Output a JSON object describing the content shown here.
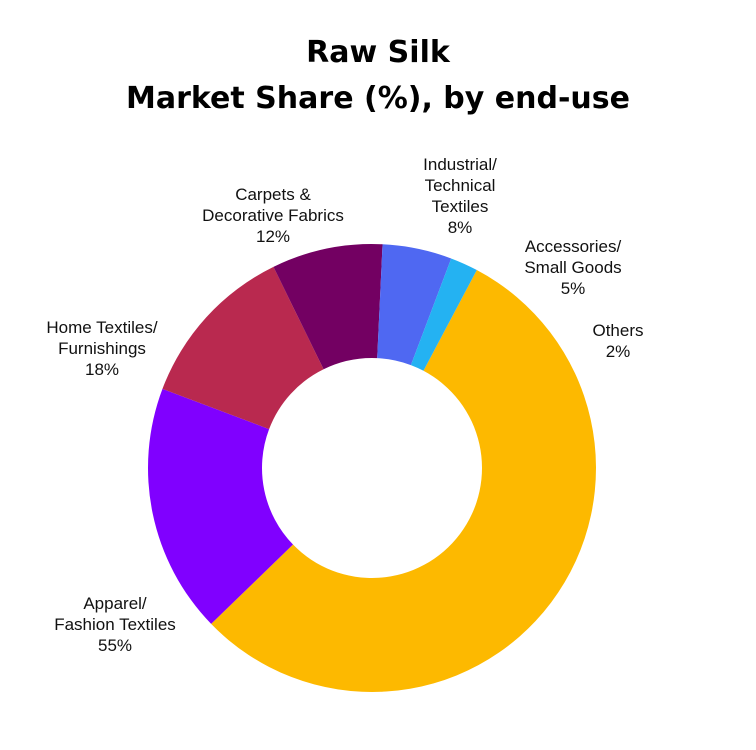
{
  "chart_data": {
    "type": "pie",
    "variant": "donut",
    "title_lines": [
      "Raw Silk",
      "Market Share (%), by end-use"
    ],
    "unit": "%",
    "slices": [
      {
        "label_lines": [
          "Apparel/",
          "Fashion Textiles"
        ],
        "value": 55,
        "value_label": "55%",
        "color": "#FDB900"
      },
      {
        "label_lines": [
          "Home Textiles/",
          "Furnishings"
        ],
        "value": 18,
        "value_label": "18%",
        "color": "#8000FF"
      },
      {
        "label_lines": [
          "Carpets &",
          "Decorative Fabrics"
        ],
        "value": 12,
        "value_label": "12%",
        "color": "#B9294F"
      },
      {
        "label_lines": [
          "Industrial/",
          "Technical",
          "Textiles"
        ],
        "value": 8,
        "value_label": "8%",
        "color": "#730062"
      },
      {
        "label_lines": [
          "Accessories/",
          "Small Goods"
        ],
        "value": 5,
        "value_label": "5%",
        "color": "#4F68F2"
      },
      {
        "label_lines": [
          "Others"
        ],
        "value": 2,
        "value_label": "2%",
        "color": "#24B2F2"
      }
    ],
    "legend": "none",
    "labels": "outside"
  }
}
